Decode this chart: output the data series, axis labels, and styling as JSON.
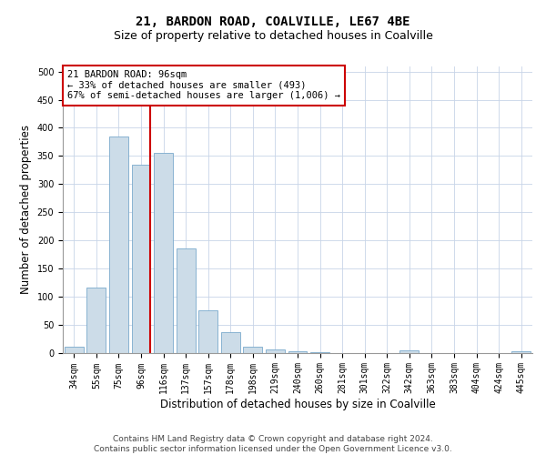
{
  "title": "21, BARDON ROAD, COALVILLE, LE67 4BE",
  "subtitle": "Size of property relative to detached houses in Coalville",
  "xlabel": "Distribution of detached houses by size in Coalville",
  "ylabel": "Number of detached properties",
  "categories": [
    "34sqm",
    "55sqm",
    "75sqm",
    "96sqm",
    "116sqm",
    "137sqm",
    "157sqm",
    "178sqm",
    "198sqm",
    "219sqm",
    "240sqm",
    "260sqm",
    "281sqm",
    "301sqm",
    "322sqm",
    "342sqm",
    "363sqm",
    "383sqm",
    "404sqm",
    "424sqm",
    "445sqm"
  ],
  "values": [
    10,
    115,
    385,
    335,
    355,
    185,
    75,
    37,
    10,
    6,
    2,
    1,
    0,
    0,
    0,
    4,
    0,
    0,
    0,
    0,
    3
  ],
  "bar_color": "#ccdce8",
  "bar_edge_color": "#7aaacc",
  "highlight_line_index": 3,
  "highlight_color": "#cc0000",
  "annotation_line1": "21 BARDON ROAD: 96sqm",
  "annotation_line2": "← 33% of detached houses are smaller (493)",
  "annotation_line3": "67% of semi-detached houses are larger (1,006) →",
  "annotation_box_color": "#ffffff",
  "annotation_box_edge": "#cc0000",
  "ylim": [
    0,
    510
  ],
  "yticks": [
    0,
    50,
    100,
    150,
    200,
    250,
    300,
    350,
    400,
    450,
    500
  ],
  "footer_text": "Contains HM Land Registry data © Crown copyright and database right 2024.\nContains public sector information licensed under the Open Government Licence v3.0.",
  "bg_color": "#ffffff",
  "grid_color": "#c8d4e8",
  "title_fontsize": 10,
  "subtitle_fontsize": 9,
  "axis_label_fontsize": 8.5,
  "tick_fontsize": 7,
  "annotation_fontsize": 7.5,
  "footer_fontsize": 6.5
}
